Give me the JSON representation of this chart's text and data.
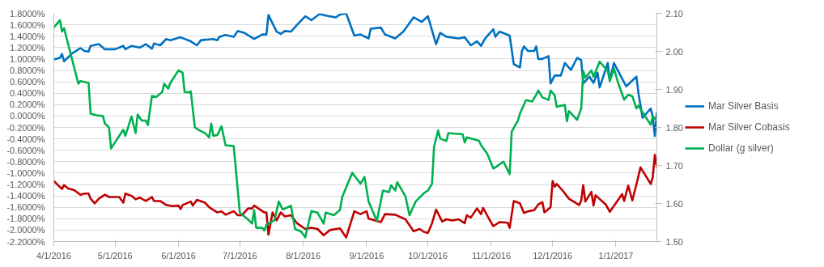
{
  "chart_data": {
    "type": "line",
    "xlim": [
      "2016-04-01",
      "2017-01-21"
    ],
    "xticks": [
      {
        "value": "2016-04-01",
        "label": "4/1/2016"
      },
      {
        "value": "2016-05-01",
        "label": "5/1/2016"
      },
      {
        "value": "2016-06-01",
        "label": "6/1/2016"
      },
      {
        "value": "2016-07-01",
        "label": "7/1/2016"
      },
      {
        "value": "2016-08-01",
        "label": "8/1/2016"
      },
      {
        "value": "2016-09-01",
        "label": "9/1/2016"
      },
      {
        "value": "2016-10-01",
        "label": "10/1/2016"
      },
      {
        "value": "2016-11-01",
        "label": "11/1/2016"
      },
      {
        "value": "2016-12-01",
        "label": "12/1/2016"
      },
      {
        "value": "2017-01-01",
        "label": "1/1/2017"
      }
    ],
    "ylim": [
      -2.2,
      1.8
    ],
    "yticks": [
      {
        "value": 1.8,
        "label": "1.8000%"
      },
      {
        "value": 1.6,
        "label": "1.6000%"
      },
      {
        "value": 1.4,
        "label": "1.4000%"
      },
      {
        "value": 1.2,
        "label": "1.2000%"
      },
      {
        "value": 1.0,
        "label": "1.0000%"
      },
      {
        "value": 0.8,
        "label": "0.8000%"
      },
      {
        "value": 0.6,
        "label": "0.6000%"
      },
      {
        "value": 0.4,
        "label": "0.4000%"
      },
      {
        "value": 0.2,
        "label": "0.2000%"
      },
      {
        "value": 0,
        "label": "0.0000%"
      },
      {
        "value": -0.2,
        "label": "-0.2000%"
      },
      {
        "value": -0.4,
        "label": "-0.4000%"
      },
      {
        "value": -0.6,
        "label": "-0.6000%"
      },
      {
        "value": -0.8,
        "label": "-0.8000%"
      },
      {
        "value": -1.0,
        "label": "-1.0000%"
      },
      {
        "value": -1.2,
        "label": "-1.2000%"
      },
      {
        "value": -1.4,
        "label": "-1.4000%"
      },
      {
        "value": -1.6,
        "label": "-1.6000%"
      },
      {
        "value": -1.8,
        "label": "-1.8000%"
      },
      {
        "value": -2.0,
        "label": "-2.0000%"
      },
      {
        "value": -2.2,
        "label": "-2.2000%"
      }
    ],
    "y2lim": [
      1.5,
      2.1
    ],
    "y2ticks": [
      {
        "value": 1.5,
        "label": "1.50"
      },
      {
        "value": 1.6,
        "label": "1.60"
      },
      {
        "value": 1.7,
        "label": "1.70"
      },
      {
        "value": 1.8,
        "label": "1.80"
      },
      {
        "value": 1.9,
        "label": "1.90"
      },
      {
        "value": 2.0,
        "label": "2.00"
      },
      {
        "value": 2.1,
        "label": "2.10"
      }
    ],
    "grid": "y",
    "legend": "right",
    "line_style": "solid",
    "series": [
      {
        "name": "Mar Silver Basis",
        "color": "#0070c0",
        "x": [
          "2016-04-01",
          "2016-04-04",
          "2016-04-05",
          "2016-04-06",
          "2016-04-10",
          "2016-04-14",
          "2016-04-16",
          "2016-04-18",
          "2016-04-19",
          "2016-04-23",
          "2016-04-26",
          "2016-05-01",
          "2016-05-05",
          "2016-05-06",
          "2016-05-09",
          "2016-05-13",
          "2016-05-16",
          "2016-05-19",
          "2016-05-20",
          "2016-05-23",
          "2016-05-26",
          "2016-05-28",
          "2016-06-02",
          "2016-06-07",
          "2016-06-10",
          "2016-06-12",
          "2016-06-18",
          "2016-06-20",
          "2016-06-21",
          "2016-06-24",
          "2016-06-28",
          "2016-06-30",
          "2016-07-03",
          "2016-07-08",
          "2016-07-12",
          "2016-07-14",
          "2016-07-15",
          "2016-07-19",
          "2016-07-21",
          "2016-07-23",
          "2016-07-26",
          "2016-07-29",
          "2016-08-02",
          "2016-08-05",
          "2016-08-09",
          "2016-08-12",
          "2016-08-17",
          "2016-08-19",
          "2016-08-22",
          "2016-08-26",
          "2016-08-29",
          "2016-09-02",
          "2016-09-03",
          "2016-09-08",
          "2016-09-10",
          "2016-09-15",
          "2016-09-19",
          "2016-09-24",
          "2016-09-28",
          "2016-10-01",
          "2016-10-05",
          "2016-10-07",
          "2016-10-10",
          "2016-10-16",
          "2016-10-19",
          "2016-10-22",
          "2016-10-25",
          "2016-10-27",
          "2016-10-29",
          "2016-11-02",
          "2016-11-03",
          "2016-11-05",
          "2016-11-10",
          "2016-11-12",
          "2016-11-15",
          "2016-11-16",
          "2016-11-17",
          "2016-11-19",
          "2016-11-22",
          "2016-11-23",
          "2016-11-24",
          "2016-11-26",
          "2016-11-29",
          "2016-11-30",
          "2016-12-02",
          "2016-12-05",
          "2016-12-07",
          "2016-12-10",
          "2016-12-13",
          "2016-12-15",
          "2016-12-16",
          "2016-12-19",
          "2016-12-21",
          "2016-12-23",
          "2016-12-24",
          "2016-12-28",
          "2016-12-29",
          "2016-12-31",
          "2017-01-06",
          "2017-01-11",
          "2017-01-12",
          "2017-01-14",
          "2017-01-18",
          "2017-01-19",
          "2017-01-20",
          "2017-01-21"
        ],
        "values": [
          0.99,
          1.02,
          1.09,
          0.96,
          1.1,
          1.19,
          1.14,
          1.13,
          1.23,
          1.26,
          1.17,
          1.17,
          1.23,
          1.17,
          1.23,
          1.2,
          1.26,
          1.18,
          1.27,
          1.24,
          1.35,
          1.33,
          1.38,
          1.31,
          1.24,
          1.33,
          1.35,
          1.33,
          1.39,
          1.42,
          1.39,
          1.49,
          1.46,
          1.35,
          1.43,
          1.43,
          1.77,
          1.48,
          1.44,
          1.49,
          1.48,
          1.6,
          1.75,
          1.68,
          1.79,
          1.76,
          1.73,
          1.78,
          1.8,
          1.41,
          1.43,
          1.36,
          1.53,
          1.55,
          1.43,
          1.36,
          1.48,
          1.73,
          1.65,
          1.75,
          1.26,
          1.46,
          1.39,
          1.36,
          1.38,
          1.24,
          1.31,
          1.23,
          1.36,
          1.52,
          1.39,
          1.48,
          1.41,
          0.91,
          0.85,
          1.14,
          1.22,
          1.14,
          1.14,
          1.22,
          1.0,
          1.0,
          1.05,
          0.57,
          0.71,
          0.71,
          0.93,
          0.81,
          1.02,
          0.98,
          0.57,
          0.69,
          0.58,
          0.76,
          0.5,
          0.93,
          0.62,
          0.93,
          0.52,
          0.69,
          0.4,
          -0.03,
          0.13,
          -0.01,
          -0.35,
          0.06
        ]
      },
      {
        "name": "Mar Silver Cobasis",
        "color": "#c00000",
        "x": [
          "2016-04-01",
          "2016-04-05",
          "2016-04-06",
          "2016-04-08",
          "2016-04-11",
          "2016-04-14",
          "2016-04-16",
          "2016-04-18",
          "2016-04-19",
          "2016-04-21",
          "2016-04-23",
          "2016-04-26",
          "2016-04-28",
          "2016-05-03",
          "2016-05-05",
          "2016-05-06",
          "2016-05-09",
          "2016-05-11",
          "2016-05-13",
          "2016-05-16",
          "2016-05-19",
          "2016-05-20",
          "2016-05-23",
          "2016-05-26",
          "2016-05-29",
          "2016-06-01",
          "2016-06-02",
          "2016-06-03",
          "2016-06-07",
          "2016-06-08",
          "2016-06-10",
          "2016-06-14",
          "2016-06-16",
          "2016-06-20",
          "2016-06-22",
          "2016-06-24",
          "2016-06-28",
          "2016-06-30",
          "2016-07-02",
          "2016-07-05",
          "2016-07-07",
          "2016-07-08",
          "2016-07-13",
          "2016-07-14",
          "2016-07-15",
          "2016-07-17",
          "2016-07-19",
          "2016-07-21",
          "2016-07-23",
          "2016-07-26",
          "2016-07-29",
          "2016-08-02",
          "2016-08-05",
          "2016-08-08",
          "2016-08-11",
          "2016-08-14",
          "2016-08-19",
          "2016-08-22",
          "2016-08-26",
          "2016-08-29",
          "2016-09-01",
          "2016-09-02",
          "2016-09-08",
          "2016-09-10",
          "2016-09-15",
          "2016-09-20",
          "2016-09-24",
          "2016-09-27",
          "2016-09-29",
          "2016-10-01",
          "2016-10-03",
          "2016-10-05",
          "2016-10-08",
          "2016-10-10",
          "2016-10-13",
          "2016-10-16",
          "2016-10-19",
          "2016-10-20",
          "2016-10-22",
          "2016-10-25",
          "2016-10-27",
          "2016-10-28",
          "2016-10-31",
          "2016-11-02",
          "2016-11-05",
          "2016-11-09",
          "2016-11-10",
          "2016-11-12",
          "2016-11-15",
          "2016-11-17",
          "2016-11-19",
          "2016-11-22",
          "2016-11-24",
          "2016-11-26",
          "2016-11-27",
          "2016-11-30",
          "2016-12-01",
          "2016-12-02",
          "2016-12-03",
          "2016-12-06",
          "2016-12-09",
          "2016-12-14",
          "2016-12-15",
          "2016-12-16",
          "2016-12-17",
          "2016-12-20",
          "2016-12-21",
          "2016-12-22",
          "2016-12-27",
          "2016-12-29",
          "2017-01-04",
          "2017-01-05",
          "2017-01-07",
          "2017-01-09",
          "2017-01-11",
          "2017-01-13",
          "2017-01-18",
          "2017-01-19",
          "2017-01-20",
          "2017-01-21"
        ],
        "values": [
          -1.14,
          -1.28,
          -1.21,
          -1.27,
          -1.3,
          -1.38,
          -1.36,
          -1.36,
          -1.45,
          -1.53,
          -1.45,
          -1.38,
          -1.42,
          -1.42,
          -1.52,
          -1.36,
          -1.4,
          -1.46,
          -1.43,
          -1.49,
          -1.42,
          -1.49,
          -1.49,
          -1.56,
          -1.58,
          -1.57,
          -1.63,
          -1.56,
          -1.5,
          -1.57,
          -1.47,
          -1.52,
          -1.6,
          -1.69,
          -1.67,
          -1.73,
          -1.67,
          -1.74,
          -1.74,
          -1.62,
          -1.62,
          -1.57,
          -1.69,
          -1.69,
          -2.08,
          -1.69,
          -1.83,
          -1.69,
          -1.76,
          -1.74,
          -1.88,
          -1.98,
          -1.96,
          -1.98,
          -2.09,
          -2.0,
          -1.97,
          -2.13,
          -1.67,
          -1.72,
          -1.67,
          -1.8,
          -1.86,
          -1.72,
          -1.73,
          -1.81,
          -2.02,
          -1.98,
          -2.03,
          -2.05,
          -1.88,
          -1.64,
          -1.85,
          -1.81,
          -1.83,
          -1.81,
          -1.88,
          -1.74,
          -1.78,
          -1.62,
          -1.72,
          -1.61,
          -1.81,
          -1.93,
          -1.86,
          -1.87,
          -1.96,
          -1.49,
          -1.53,
          -1.7,
          -1.67,
          -1.65,
          -1.55,
          -1.51,
          -1.69,
          -1.6,
          -1.14,
          -1.24,
          -1.19,
          -1.31,
          -1.45,
          -1.56,
          -1.48,
          -1.21,
          -1.5,
          -1.33,
          -1.57,
          -1.39,
          -1.55,
          -1.68,
          -1.37,
          -1.49,
          -1.22,
          -1.48,
          -1.2,
          -0.9,
          -1.19,
          -1.07,
          -0.68,
          -0.9
        ]
      },
      {
        "name": "Dollar (g silver)",
        "color": "#00b050",
        "axis": "y2",
        "x": [
          "2016-04-01",
          "2016-04-04",
          "2016-04-05",
          "2016-04-06",
          "2016-04-13",
          "2016-04-14",
          "2016-04-18",
          "2016-04-19",
          "2016-04-22",
          "2016-04-25",
          "2016-04-26",
          "2016-04-28",
          "2016-04-29",
          "2016-05-05",
          "2016-05-06",
          "2016-05-09",
          "2016-05-11",
          "2016-05-12",
          "2016-05-14",
          "2016-05-16",
          "2016-05-17",
          "2016-05-19",
          "2016-05-21",
          "2016-05-24",
          "2016-05-25",
          "2016-05-27",
          "2016-05-28",
          "2016-06-01",
          "2016-06-03",
          "2016-06-04",
          "2016-06-06",
          "2016-06-07",
          "2016-06-09",
          "2016-06-11",
          "2016-06-14",
          "2016-06-16",
          "2016-06-17",
          "2016-06-18",
          "2016-06-20",
          "2016-06-22",
          "2016-06-24",
          "2016-06-28",
          "2016-07-01",
          "2016-07-05",
          "2016-07-07",
          "2016-07-08",
          "2016-07-09",
          "2016-07-12",
          "2016-07-13",
          "2016-07-14",
          "2016-07-18",
          "2016-07-20",
          "2016-07-22",
          "2016-07-26",
          "2016-07-28",
          "2016-07-31",
          "2016-08-02",
          "2016-08-05",
          "2016-08-08",
          "2016-08-11",
          "2016-08-12",
          "2016-08-16",
          "2016-08-19",
          "2016-08-20",
          "2016-08-25",
          "2016-08-29",
          "2016-08-31",
          "2016-09-02",
          "2016-09-06",
          "2016-09-09",
          "2016-09-12",
          "2016-09-13",
          "2016-09-15",
          "2016-09-16",
          "2016-09-20",
          "2016-09-22",
          "2016-09-25",
          "2016-09-29",
          "2016-10-01",
          "2016-10-03",
          "2016-10-04",
          "2016-10-06",
          "2016-10-07",
          "2016-10-10",
          "2016-10-11",
          "2016-10-18",
          "2016-10-19",
          "2016-10-20",
          "2016-10-26",
          "2016-10-27",
          "2016-10-30",
          "2016-11-02",
          "2016-11-03",
          "2016-11-07",
          "2016-11-10",
          "2016-11-11",
          "2016-11-14",
          "2016-11-15",
          "2016-11-18",
          "2016-11-21",
          "2016-11-23",
          "2016-11-24",
          "2016-11-26",
          "2016-11-29",
          "2016-11-30",
          "2016-12-02",
          "2016-12-03",
          "2016-12-05",
          "2016-12-07",
          "2016-12-08",
          "2016-12-09",
          "2016-12-13",
          "2016-12-15",
          "2016-12-16",
          "2016-12-17",
          "2016-12-20",
          "2016-12-21",
          "2016-12-24",
          "2016-12-28",
          "2016-12-29",
          "2016-12-31",
          "2017-01-02",
          "2017-01-05",
          "2017-01-07",
          "2017-01-09",
          "2017-01-11",
          "2017-01-12",
          "2017-01-18",
          "2017-01-19",
          "2017-01-21"
        ],
        "values": [
          2.063,
          2.082,
          2.052,
          2.061,
          1.915,
          1.922,
          1.917,
          1.836,
          1.832,
          1.83,
          1.81,
          1.8,
          1.745,
          1.794,
          1.778,
          1.829,
          1.785,
          1.834,
          1.818,
          1.818,
          1.806,
          1.883,
          1.88,
          1.893,
          1.915,
          1.902,
          1.917,
          1.95,
          1.944,
          1.893,
          1.892,
          1.895,
          1.8,
          1.793,
          1.785,
          1.774,
          1.81,
          1.778,
          1.78,
          1.803,
          1.753,
          1.751,
          1.576,
          1.558,
          1.547,
          1.583,
          1.536,
          1.536,
          1.529,
          1.544,
          1.556,
          1.605,
          1.584,
          1.594,
          1.533,
          1.526,
          1.511,
          1.58,
          1.576,
          1.547,
          1.576,
          1.569,
          1.583,
          1.616,
          1.681,
          1.652,
          1.67,
          1.605,
          1.554,
          1.634,
          1.63,
          1.648,
          1.634,
          1.656,
          1.619,
          1.569,
          1.605,
          1.627,
          1.634,
          1.652,
          1.749,
          1.792,
          1.771,
          1.764,
          1.785,
          1.782,
          1.76,
          1.774,
          1.765,
          1.753,
          1.731,
          1.692,
          1.695,
          1.71,
          1.677,
          1.789,
          1.818,
          1.836,
          1.872,
          1.868,
          1.886,
          1.897,
          1.879,
          1.872,
          1.897,
          1.885,
          1.854,
          1.857,
          1.859,
          1.816,
          1.843,
          1.82,
          1.85,
          1.948,
          1.931,
          1.95,
          1.933,
          1.973,
          1.948,
          1.922,
          1.955,
          1.918,
          1.873,
          1.886,
          1.882,
          1.85,
          1.857,
          1.807,
          1.829,
          1.818
        ]
      }
    ]
  }
}
